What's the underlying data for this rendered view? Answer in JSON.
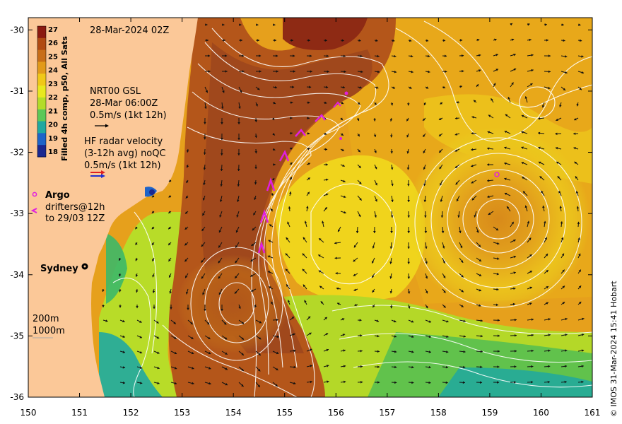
{
  "map": {
    "timestamp": "28-Mar-2024 02Z",
    "gsl_line1": "NRT00 GSL",
    "gsl_line2": "28-Mar 06:00Z",
    "gsl_line3": "0.5m/s (1kt 12h)",
    "hf_line1": "HF radar velocity",
    "hf_line2": "(3-12h avg) noQC",
    "hf_line3": "0.5m/s (1kt 12h)",
    "argo_label": "Argo",
    "drifters_line1": "drifters@12h",
    "drifters_line2": "to 29/03 12Z",
    "city_label": "Sydney",
    "depth_200": "200m",
    "depth_1000": "1000m",
    "credit": "© IMOS 31-Mar-2024 15:41 Hobart"
  },
  "colorbar": {
    "title": "Filled 4h comp, p50, All Sats",
    "labels": [
      "27",
      "26",
      "25",
      "24",
      "23",
      "22",
      "21",
      "20",
      "19",
      "18"
    ],
    "colors": [
      "#8b1a10",
      "#b04a12",
      "#c86e18",
      "#e29a1a",
      "#f0c818",
      "#e8e81e",
      "#b4dc28",
      "#5cc858",
      "#20a8a0",
      "#1e64c8",
      "#1a2890"
    ]
  },
  "axes": {
    "x_ticks": [
      "150",
      "151",
      "152",
      "153",
      "154",
      "155",
      "156",
      "157",
      "158",
      "159",
      "160",
      "161"
    ],
    "y_ticks": [
      "-30",
      "-31",
      "-32",
      "-33",
      "-34",
      "-35",
      "-36"
    ],
    "x_range": [
      150,
      161
    ],
    "y_range": [
      -36,
      -29.8
    ]
  },
  "legend_colors": {
    "gsl_arrow": "#000000",
    "hf_red": "#e02020",
    "hf_blue": "#2030d0",
    "argo": "#e020e0",
    "drifter": "#e020e0"
  }
}
